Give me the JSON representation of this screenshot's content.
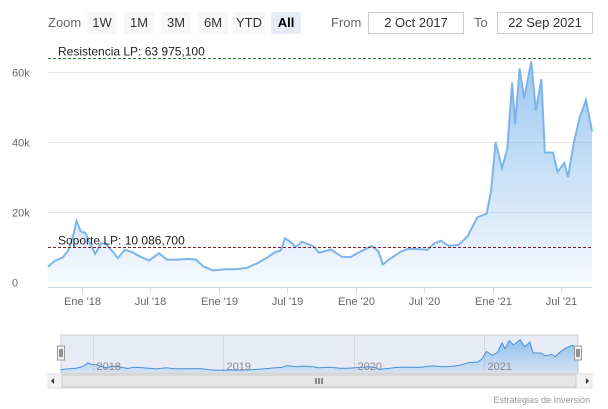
{
  "toolbar": {
    "zoom_label": "Zoom",
    "buttons": [
      "1W",
      "1M",
      "3M",
      "6M",
      "YTD",
      "All"
    ],
    "active": "All",
    "from_label": "From",
    "from_value": "2 Oct 2017",
    "to_label": "To",
    "to_value": "22 Sep 2021"
  },
  "credits": "Estrategias de Inversión",
  "chart_data": {
    "type": "area",
    "xlabel": "",
    "ylabel": "",
    "ylim": [
      0,
      68000
    ],
    "xlim": [
      "2017-10-02",
      "2021-09-22"
    ],
    "y_ticks": [
      0,
      20000,
      40000,
      60000
    ],
    "y_tick_labels": [
      "0",
      "20k",
      "40k",
      "60k"
    ],
    "x_ticks": [
      {
        "date": "2018-01-01",
        "label": "Ene '18"
      },
      {
        "date": "2018-07-01",
        "label": "Jul '18"
      },
      {
        "date": "2019-01-01",
        "label": "Ene '19"
      },
      {
        "date": "2019-07-01",
        "label": "Jul '19"
      },
      {
        "date": "2020-01-01",
        "label": "Ene '20"
      },
      {
        "date": "2020-07-01",
        "label": "Jul '20"
      },
      {
        "date": "2021-01-01",
        "label": "Ene '21"
      },
      {
        "date": "2021-07-01",
        "label": "Jul '21"
      }
    ],
    "navigator_labels": [
      {
        "date": "2018-01-01",
        "label": "2018"
      },
      {
        "date": "2019-01-01",
        "label": "2019"
      },
      {
        "date": "2020-01-01",
        "label": "2020"
      },
      {
        "date": "2021-01-01",
        "label": "2021"
      }
    ],
    "colors": {
      "series": "#7cb5ec",
      "resistance": "#2e7d32",
      "support": "#8b1a1a"
    },
    "plot_lines": [
      {
        "name": "resistance",
        "label": "Resistencia LP: 63 975,100",
        "value": 63975.1
      },
      {
        "name": "support",
        "label": "Soporte LP: 10 086,700",
        "value": 10086.7
      }
    ],
    "series": [
      {
        "points": [
          [
            "2017-10-02",
            4400
          ],
          [
            "2017-10-20",
            6000
          ],
          [
            "2017-11-10",
            7000
          ],
          [
            "2017-11-25",
            9000
          ],
          [
            "2017-12-10",
            14000
          ],
          [
            "2017-12-17",
            17500
          ],
          [
            "2017-12-28",
            14500
          ],
          [
            "2018-01-10",
            14000
          ],
          [
            "2018-01-20",
            11500
          ],
          [
            "2018-02-05",
            8000
          ],
          [
            "2018-02-20",
            11000
          ],
          [
            "2018-03-05",
            11000
          ],
          [
            "2018-03-25",
            8500
          ],
          [
            "2018-04-06",
            6800
          ],
          [
            "2018-04-25",
            9200
          ],
          [
            "2018-05-15",
            8500
          ],
          [
            "2018-06-01",
            7500
          ],
          [
            "2018-06-28",
            6100
          ],
          [
            "2018-07-25",
            8200
          ],
          [
            "2018-08-15",
            6400
          ],
          [
            "2018-09-10",
            6400
          ],
          [
            "2018-10-10",
            6600
          ],
          [
            "2018-11-01",
            6400
          ],
          [
            "2018-11-20",
            4500
          ],
          [
            "2018-12-15",
            3300
          ],
          [
            "2019-01-15",
            3600
          ],
          [
            "2019-02-15",
            3700
          ],
          [
            "2019-03-15",
            4000
          ],
          [
            "2019-04-10",
            5200
          ],
          [
            "2019-05-10",
            7000
          ],
          [
            "2019-05-30",
            8500
          ],
          [
            "2019-06-15",
            9000
          ],
          [
            "2019-06-26",
            12500
          ],
          [
            "2019-07-10",
            11500
          ],
          [
            "2019-07-25",
            10000
          ],
          [
            "2019-08-10",
            11500
          ],
          [
            "2019-09-10",
            10200
          ],
          [
            "2019-09-25",
            8300
          ],
          [
            "2019-10-26",
            9300
          ],
          [
            "2019-11-25",
            7200
          ],
          [
            "2019-12-18",
            7100
          ],
          [
            "2020-01-15",
            8800
          ],
          [
            "2020-02-12",
            10300
          ],
          [
            "2020-03-01",
            8800
          ],
          [
            "2020-03-13",
            5000
          ],
          [
            "2020-04-01",
            6600
          ],
          [
            "2020-04-30",
            8700
          ],
          [
            "2020-05-20",
            9500
          ],
          [
            "2020-06-15",
            9400
          ],
          [
            "2020-07-10",
            9200
          ],
          [
            "2020-07-28",
            11000
          ],
          [
            "2020-08-15",
            11800
          ],
          [
            "2020-09-05",
            10300
          ],
          [
            "2020-10-01",
            10600
          ],
          [
            "2020-10-25",
            13000
          ],
          [
            "2020-11-20",
            18500
          ],
          [
            "2020-12-15",
            19500
          ],
          [
            "2020-12-27",
            26000
          ],
          [
            "2021-01-08",
            40000
          ],
          [
            "2021-01-25",
            32500
          ],
          [
            "2021-02-08",
            38000
          ],
          [
            "2021-02-21",
            57000
          ],
          [
            "2021-03-01",
            45000
          ],
          [
            "2021-03-13",
            61000
          ],
          [
            "2021-03-25",
            52500
          ],
          [
            "2021-04-13",
            63000
          ],
          [
            "2021-04-25",
            49000
          ],
          [
            "2021-05-10",
            58000
          ],
          [
            "2021-05-19",
            37000
          ],
          [
            "2021-06-10",
            37000
          ],
          [
            "2021-06-22",
            31500
          ],
          [
            "2021-07-10",
            34000
          ],
          [
            "2021-07-20",
            30000
          ],
          [
            "2021-08-05",
            40000
          ],
          [
            "2021-08-20",
            47000
          ],
          [
            "2021-09-06",
            52000
          ],
          [
            "2021-09-15",
            47000
          ],
          [
            "2021-09-22",
            43000
          ]
        ]
      }
    ]
  }
}
